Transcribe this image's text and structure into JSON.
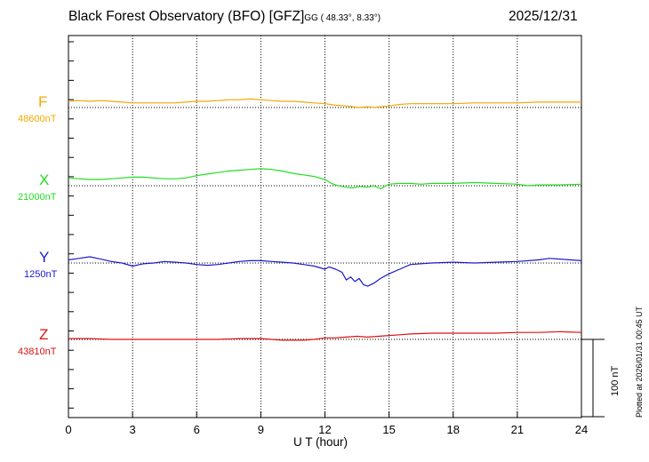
{
  "header": {
    "title": "Black Forest Observatory (BFO)  [GFZ]",
    "coords": "GG ( 48.33°,   8.33°)",
    "date": "2025/12/31"
  },
  "footer": {
    "plotted_at": "Plotted at 2026/01/31 00:45 UT"
  },
  "scale_bar": {
    "label": "100 nT",
    "value_nT": 100
  },
  "chart_data": {
    "type": "line",
    "xlabel": "U T (hour)",
    "xlim": [
      0,
      24
    ],
    "xticks": [
      0,
      3,
      6,
      9,
      12,
      15,
      18,
      21,
      24
    ],
    "vertical_grid_hours": [
      3,
      6,
      9,
      12,
      15,
      18,
      21
    ],
    "series": [
      {
        "name": "F",
        "baseline_label": "48600nT",
        "baseline_nT": 48600,
        "color": "#f5a800",
        "x": [
          0,
          0.5,
          1,
          1.5,
          2,
          2.5,
          3,
          3.5,
          4,
          4.5,
          5,
          5.5,
          6,
          6.5,
          7,
          7.5,
          8,
          8.5,
          9,
          9.5,
          10,
          10.5,
          11,
          11.5,
          12,
          12.5,
          13,
          13.3,
          13.6,
          14,
          14.3,
          14.6,
          15,
          15.5,
          16,
          17,
          18,
          19,
          20,
          21,
          22,
          23,
          23.5,
          24
        ],
        "y": [
          8,
          9,
          8,
          9,
          8,
          7,
          6,
          6,
          6,
          6,
          6,
          7,
          8,
          8,
          9,
          10,
          10,
          11,
          10,
          9,
          8,
          8,
          7,
          6,
          5,
          3,
          2,
          1,
          0,
          1,
          0,
          1,
          2,
          4,
          5,
          5,
          5,
          6,
          6,
          6,
          7,
          7,
          7,
          7
        ]
      },
      {
        "name": "X",
        "baseline_label": "21000nT",
        "baseline_nT": 21000,
        "color": "#22dd22",
        "x": [
          0,
          0.5,
          1,
          1.5,
          2,
          2.5,
          3,
          3.5,
          4,
          4.5,
          5,
          5.5,
          6,
          6.5,
          7,
          7.5,
          8,
          8.5,
          9,
          9.5,
          10,
          10.5,
          11,
          11.5,
          12,
          12.3,
          12.6,
          13,
          13.3,
          13.6,
          14,
          14.3,
          14.6,
          15,
          15.5,
          16,
          16.5,
          17,
          18,
          19,
          20,
          21,
          21.5,
          22,
          23,
          24
        ],
        "y": [
          10,
          9,
          8,
          8,
          9,
          10,
          11,
          11,
          10,
          9,
          9,
          10,
          13,
          15,
          17,
          19,
          20,
          21,
          22,
          21,
          19,
          16,
          14,
          12,
          8,
          3,
          0,
          -2,
          -3,
          -1,
          -2,
          0,
          -4,
          2,
          3,
          3,
          2,
          3,
          3,
          4,
          3,
          2,
          0,
          1,
          1,
          2
        ]
      },
      {
        "name": "Y",
        "baseline_label": "1250nT",
        "baseline_nT": 1250,
        "color": "#1a1acc",
        "x": [
          0,
          0.5,
          1,
          1.5,
          2,
          2.5,
          3,
          3.5,
          4,
          4.5,
          5,
          5.5,
          6,
          6.5,
          7,
          7.5,
          8,
          8.5,
          9,
          9.5,
          10,
          10.5,
          11,
          11.5,
          12,
          12.2,
          12.5,
          12.8,
          13,
          13.2,
          13.4,
          13.6,
          13.8,
          14,
          14.3,
          14.6,
          15,
          15.5,
          16,
          17,
          18,
          19,
          20,
          21,
          22,
          22.5,
          23,
          24
        ],
        "y": [
          4,
          6,
          8,
          5,
          2,
          0,
          -4,
          -1,
          0,
          2,
          1,
          0,
          -2,
          -3,
          -2,
          0,
          2,
          3,
          3,
          2,
          1,
          0,
          -2,
          -4,
          -8,
          -5,
          -8,
          -12,
          -22,
          -18,
          -24,
          -20,
          -28,
          -30,
          -26,
          -20,
          -14,
          -8,
          -2,
          0,
          1,
          0,
          1,
          2,
          4,
          6,
          5,
          3
        ]
      },
      {
        "name": "Z",
        "baseline_label": "43810nT",
        "baseline_nT": 43810,
        "color": "#dd1111",
        "x": [
          0,
          1,
          2,
          3,
          4,
          5,
          6,
          7,
          8,
          9,
          10,
          11,
          11.5,
          12,
          12.5,
          13,
          13.5,
          14,
          14.5,
          15,
          15.5,
          16,
          17,
          18,
          19,
          20,
          21,
          22,
          23,
          24
        ],
        "y": [
          1,
          1,
          0,
          0,
          0,
          0,
          0,
          0,
          1,
          1,
          -1,
          -1,
          0,
          2,
          2,
          3,
          4,
          3,
          4,
          5,
          6,
          7,
          8,
          8,
          8,
          8,
          9,
          9,
          10,
          9
        ]
      }
    ]
  }
}
